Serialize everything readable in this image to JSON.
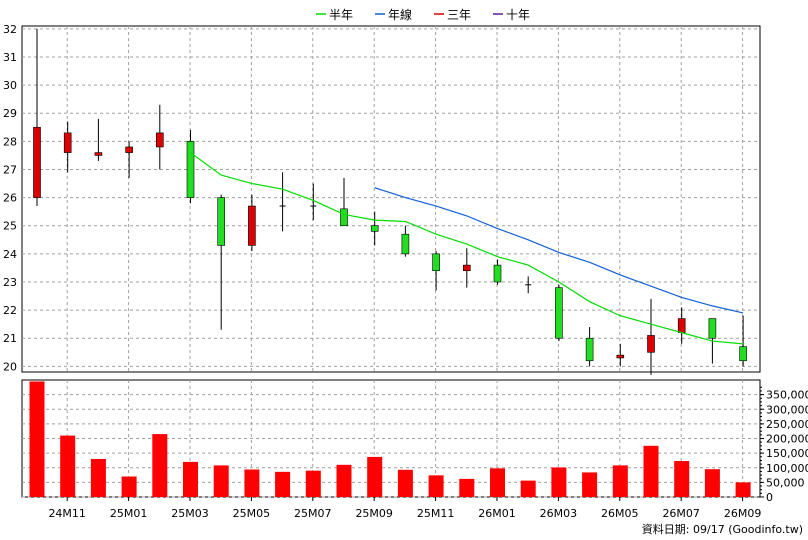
{
  "chart_data": {
    "type": "candlestick",
    "legend": [
      {
        "label": "半年",
        "color": "#00dd00"
      },
      {
        "label": "年線",
        "color": "#1060d8"
      },
      {
        "label": "三年",
        "color": "#dd0000"
      },
      {
        "label": "十年",
        "color": "#5a1aa0"
      }
    ],
    "legend_position": "top-center",
    "grid": true,
    "price_axis": {
      "ticks": [
        "32",
        "31",
        "30",
        "29",
        "28",
        "27",
        "26",
        "25",
        "24",
        "23",
        "22",
        "21",
        "20"
      ],
      "ylim": [
        19.8,
        32.1
      ]
    },
    "volume_axis": {
      "ticks": [
        "350,000",
        "300,000",
        "250,000",
        "200,000",
        "150,000",
        "100,000",
        "50,000",
        "0"
      ],
      "ylim": [
        0,
        400000
      ]
    },
    "x_labels": [
      "24M11",
      "25M01",
      "25M03",
      "25M05",
      "25M07",
      "25M09",
      "25M11",
      "26M01",
      "26M03",
      "26M05",
      "26M07",
      "26M09"
    ],
    "candles": [
      {
        "open": 26.0,
        "close": 28.5,
        "high": 32.0,
        "low": 25.7
      },
      {
        "open": 27.6,
        "close": 28.3,
        "high": 28.7,
        "low": 26.9
      },
      {
        "open": 27.5,
        "close": 27.6,
        "high": 28.8,
        "low": 27.3
      },
      {
        "open": 27.6,
        "close": 27.8,
        "high": 28.0,
        "low": 26.7
      },
      {
        "open": 27.8,
        "close": 28.3,
        "high": 29.3,
        "low": 27.0
      },
      {
        "open": 28.0,
        "close": 26.0,
        "high": 28.4,
        "low": 25.8
      },
      {
        "open": 26.0,
        "close": 24.3,
        "high": 26.1,
        "low": 21.3
      },
      {
        "open": 24.3,
        "close": 25.7,
        "high": 26.1,
        "low": 24.1
      },
      {
        "open": 25.7,
        "close": 25.7,
        "high": 26.9,
        "low": 24.8
      },
      {
        "open": 25.7,
        "close": 25.7,
        "high": 26.5,
        "low": 25.2
      },
      {
        "open": 25.6,
        "close": 25.0,
        "high": 26.7,
        "low": 25.0
      },
      {
        "open": 25.0,
        "close": 24.8,
        "high": 25.5,
        "low": 24.3
      },
      {
        "open": 24.7,
        "close": 24.0,
        "high": 25.0,
        "low": 23.9
      },
      {
        "open": 24.0,
        "close": 23.4,
        "high": 24.1,
        "low": 22.7
      },
      {
        "open": 23.4,
        "close": 23.6,
        "high": 24.2,
        "low": 22.8
      },
      {
        "open": 23.6,
        "close": 23.0,
        "high": 23.8,
        "low": 22.9
      },
      {
        "open": 22.9,
        "close": 22.9,
        "high": 23.2,
        "low": 22.6
      },
      {
        "open": 22.8,
        "close": 21.0,
        "high": 22.9,
        "low": 20.9
      },
      {
        "open": 21.0,
        "close": 20.2,
        "high": 21.4,
        "low": 20.0
      },
      {
        "open": 20.3,
        "close": 20.4,
        "high": 20.8,
        "low": 20.0
      },
      {
        "open": 20.5,
        "close": 21.1,
        "high": 22.4,
        "low": 19.7
      },
      {
        "open": 21.2,
        "close": 21.7,
        "high": 22.1,
        "low": 20.8
      },
      {
        "open": 21.7,
        "close": 21.0,
        "high": 21.7,
        "low": 20.1
      },
      {
        "open": 20.7,
        "close": 20.2,
        "high": 21.8,
        "low": 20.0
      }
    ],
    "volumes": [
      395000,
      210000,
      130000,
      70000,
      215000,
      120000,
      108000,
      94000,
      86000,
      90000,
      110000,
      137000,
      93000,
      74000,
      62000,
      98000,
      56000,
      101000,
      84000,
      108000,
      175000,
      123000,
      95000,
      50000
    ],
    "series": [
      {
        "name": "半年",
        "color": "#00dd00",
        "points": [
          [
            5,
            27.6
          ],
          [
            6,
            26.8
          ],
          [
            7,
            26.5
          ],
          [
            8,
            26.3
          ],
          [
            9,
            25.9
          ],
          [
            10,
            25.4
          ],
          [
            11,
            25.2
          ],
          [
            12,
            25.15
          ],
          [
            13,
            24.7
          ],
          [
            14,
            24.35
          ],
          [
            15,
            23.9
          ],
          [
            16,
            23.6
          ],
          [
            17,
            23.0
          ],
          [
            18,
            22.3
          ],
          [
            19,
            21.8
          ],
          [
            20,
            21.5
          ],
          [
            21,
            21.2
          ],
          [
            22,
            20.9
          ],
          [
            23,
            20.8
          ]
        ]
      },
      {
        "name": "年線",
        "color": "#1060d8",
        "points": [
          [
            11,
            26.35
          ],
          [
            12,
            26.0
          ],
          [
            13,
            25.7
          ],
          [
            14,
            25.35
          ],
          [
            15,
            24.9
          ],
          [
            16,
            24.5
          ],
          [
            17,
            24.05
          ],
          [
            18,
            23.7
          ],
          [
            19,
            23.25
          ],
          [
            20,
            22.85
          ],
          [
            21,
            22.45
          ],
          [
            22,
            22.15
          ],
          [
            23,
            21.9
          ]
        ]
      }
    ]
  },
  "footer": {
    "text": "資料日期: 09/17  (Goodinfo.tw)"
  }
}
